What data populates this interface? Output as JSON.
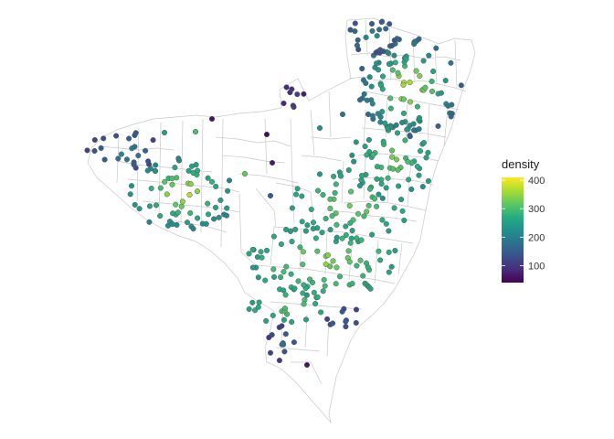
{
  "chart_data": {
    "type": "scatter",
    "subtype": "point map over tract boundaries",
    "color_variable": "density",
    "color_scale": "viridis",
    "color_range": [
      40,
      410
    ],
    "legend": {
      "title": "density",
      "ticks": [
        "100",
        "200",
        "300",
        "400"
      ],
      "tick_values": [
        100,
        200,
        300,
        400
      ],
      "placement": "right"
    },
    "colors": {
      "viridis": [
        "#440154",
        "#472c7a",
        "#3b518b",
        "#2c718e",
        "#21908c",
        "#27ad81",
        "#5cc863",
        "#aadc32",
        "#fde725"
      ],
      "boundary": "#c8c8c8",
      "point_outline": "#555555"
    }
  }
}
